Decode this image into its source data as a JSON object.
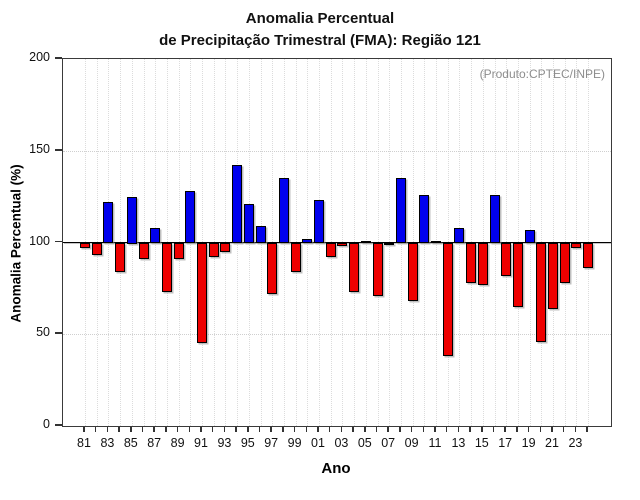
{
  "chart_data": {
    "type": "bar",
    "title": "Anomalia Percentual",
    "subtitle": "de Precipitação Trimestral (FMA): Região 121",
    "annotation": "(Produto:CPTEC/INPE)",
    "xlabel": "Ano",
    "ylabel": "Anomalia Percentual (%)",
    "ylim": [
      0,
      200
    ],
    "yticks": [
      0,
      50,
      100,
      150,
      200
    ],
    "baseline": 100,
    "grid": "dotted, vertical line per year, horizontal at 50 and 150",
    "legend": "none",
    "label_every": 2,
    "categories": [
      "81",
      "82",
      "83",
      "84",
      "85",
      "86",
      "87",
      "88",
      "89",
      "90",
      "91",
      "92",
      "93",
      "94",
      "95",
      "96",
      "97",
      "98",
      "99",
      "00",
      "01",
      "02",
      "03",
      "04",
      "05",
      "06",
      "07",
      "08",
      "09",
      "10",
      "11",
      "12",
      "13",
      "14",
      "15",
      "16",
      "17",
      "18",
      "19",
      "20",
      "21",
      "22",
      "23",
      "24"
    ],
    "values": [
      97,
      93,
      122,
      84,
      125,
      91,
      108,
      73,
      91,
      128,
      45,
      92,
      95,
      142,
      121,
      109,
      72,
      135,
      84,
      102,
      123,
      92,
      98,
      73,
      101,
      71,
      99,
      135,
      68,
      126,
      101,
      38,
      108,
      78,
      77,
      126,
      82,
      65,
      107,
      46,
      64,
      78,
      97,
      86
    ],
    "colors": {
      "above_baseline": "#0000ee",
      "below_baseline": "#ee0000",
      "bar_border": "#000000",
      "frame": "#3a3a3a",
      "annotation_text": "#8d8d8d"
    }
  }
}
